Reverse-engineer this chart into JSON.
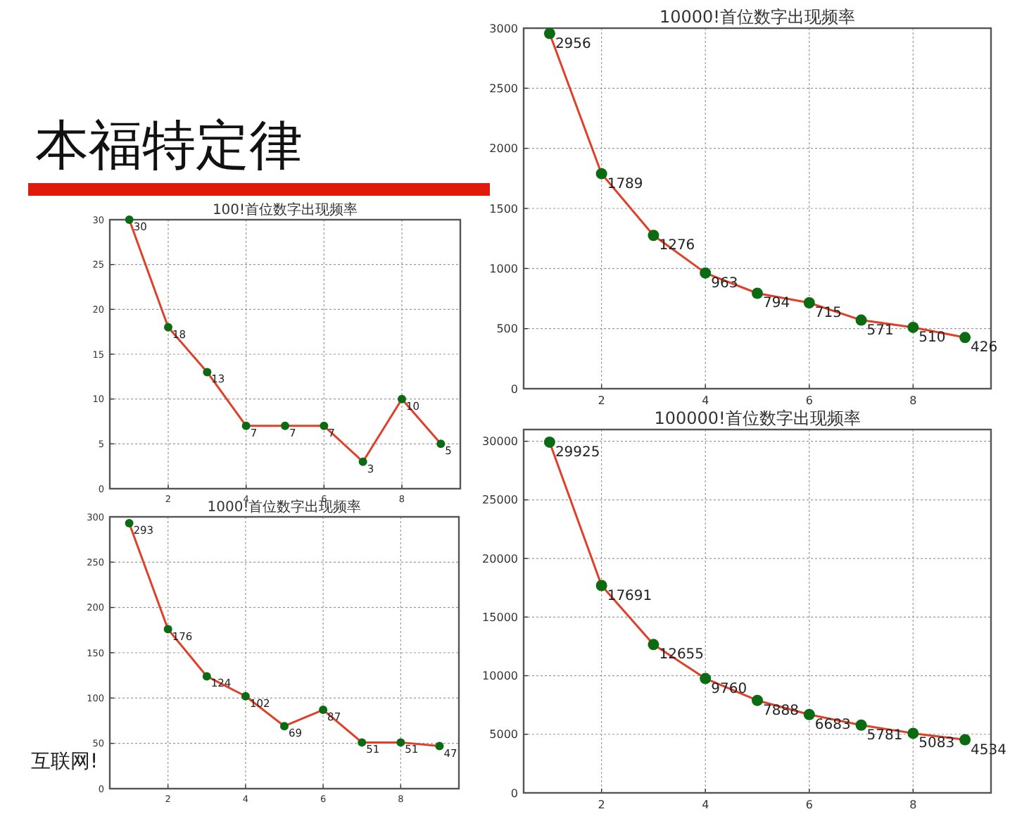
{
  "chart_data": [
    {
      "type": "other",
      "title": "本福特定律",
      "annotations": [
        "互联网!"
      ]
    },
    {
      "type": "line",
      "title": "100!首位数字出现频率",
      "x": [
        1,
        2,
        3,
        4,
        5,
        6,
        7,
        8,
        9
      ],
      "series": [
        {
          "color": "#e0402a",
          "colors": [
            "#0b6b12",
            "#0b6b12",
            "#0b6b12",
            "#0b6b12",
            "#0b6b12",
            "#0b6b12",
            "#0b6b12",
            "#0b6b12",
            "#0b6b12"
          ],
          "values": [
            30,
            18,
            13,
            7,
            7,
            7,
            3,
            10,
            5
          ]
        }
      ],
      "xlim": [
        0.5,
        9.5
      ],
      "xticks": [
        2,
        4,
        6,
        8
      ],
      "ylim": [
        0,
        30
      ],
      "yticks": [
        0,
        5,
        10,
        15,
        20,
        25,
        30
      ],
      "grid": true,
      "marker": "circle",
      "line_style": "solid",
      "data_labels": true
    },
    {
      "type": "line",
      "title": "1000!首位数字出现频率",
      "x": [
        1,
        2,
        3,
        4,
        5,
        6,
        7,
        8,
        9
      ],
      "series": [
        {
          "color": "#e0402a",
          "colors": [
            "#0b6b12",
            "#0b6b12",
            "#0b6b12",
            "#0b6b12",
            "#0b6b12",
            "#0b6b12",
            "#0b6b12",
            "#0b6b12",
            "#0b6b12"
          ],
          "values": [
            293,
            176,
            124,
            102,
            69,
            87,
            51,
            51,
            47
          ]
        }
      ],
      "xlim": [
        0.5,
        9.5
      ],
      "xticks": [
        2,
        4,
        6,
        8
      ],
      "ylim": [
        0,
        300
      ],
      "yticks": [
        0,
        50,
        100,
        150,
        200,
        250,
        300
      ],
      "grid": true,
      "marker": "circle",
      "line_style": "solid",
      "data_labels": true
    },
    {
      "type": "line",
      "title": "10000!首位数字出现频率",
      "x": [
        1,
        2,
        3,
        4,
        5,
        6,
        7,
        8,
        9
      ],
      "series": [
        {
          "color": "#e0402a",
          "colors": [
            "#0b6b12",
            "#0b6b12",
            "#0b6b12",
            "#0b6b12",
            "#0b6b12",
            "#0b6b12",
            "#0b6b12",
            "#0b6b12",
            "#0b6b12"
          ],
          "values": [
            2956,
            1789,
            1276,
            963,
            794,
            715,
            571,
            510,
            426
          ]
        }
      ],
      "xlim": [
        0.5,
        9.5
      ],
      "xticks": [
        2,
        4,
        6,
        8
      ],
      "ylim": [
        0,
        3000
      ],
      "yticks": [
        0,
        500,
        1000,
        1500,
        2000,
        2500,
        3000
      ],
      "grid": true,
      "marker": "circle",
      "line_style": "solid",
      "data_labels": true
    },
    {
      "type": "line",
      "title": "100000!首位数字出现频率",
      "x": [
        1,
        2,
        3,
        4,
        5,
        6,
        7,
        8,
        9
      ],
      "series": [
        {
          "color": "#e0402a",
          "colors": [
            "#0b6b12",
            "#0b6b12",
            "#0b6b12",
            "#0b6b12",
            "#0b6b12",
            "#0b6b12",
            "#0b6b12",
            "#0b6b12",
            "#0b6b12"
          ],
          "values": [
            29925,
            17691,
            12655,
            9760,
            7888,
            6683,
            5781,
            5083,
            4534
          ]
        }
      ],
      "xlim": [
        0.5,
        9.5
      ],
      "xticks": [
        2,
        4,
        6,
        8
      ],
      "ylim": [
        0,
        31000
      ],
      "yticks": [
        0,
        5000,
        10000,
        15000,
        20000,
        25000,
        30000
      ],
      "grid": true,
      "marker": "circle",
      "line_style": "solid",
      "data_labels": true
    }
  ]
}
